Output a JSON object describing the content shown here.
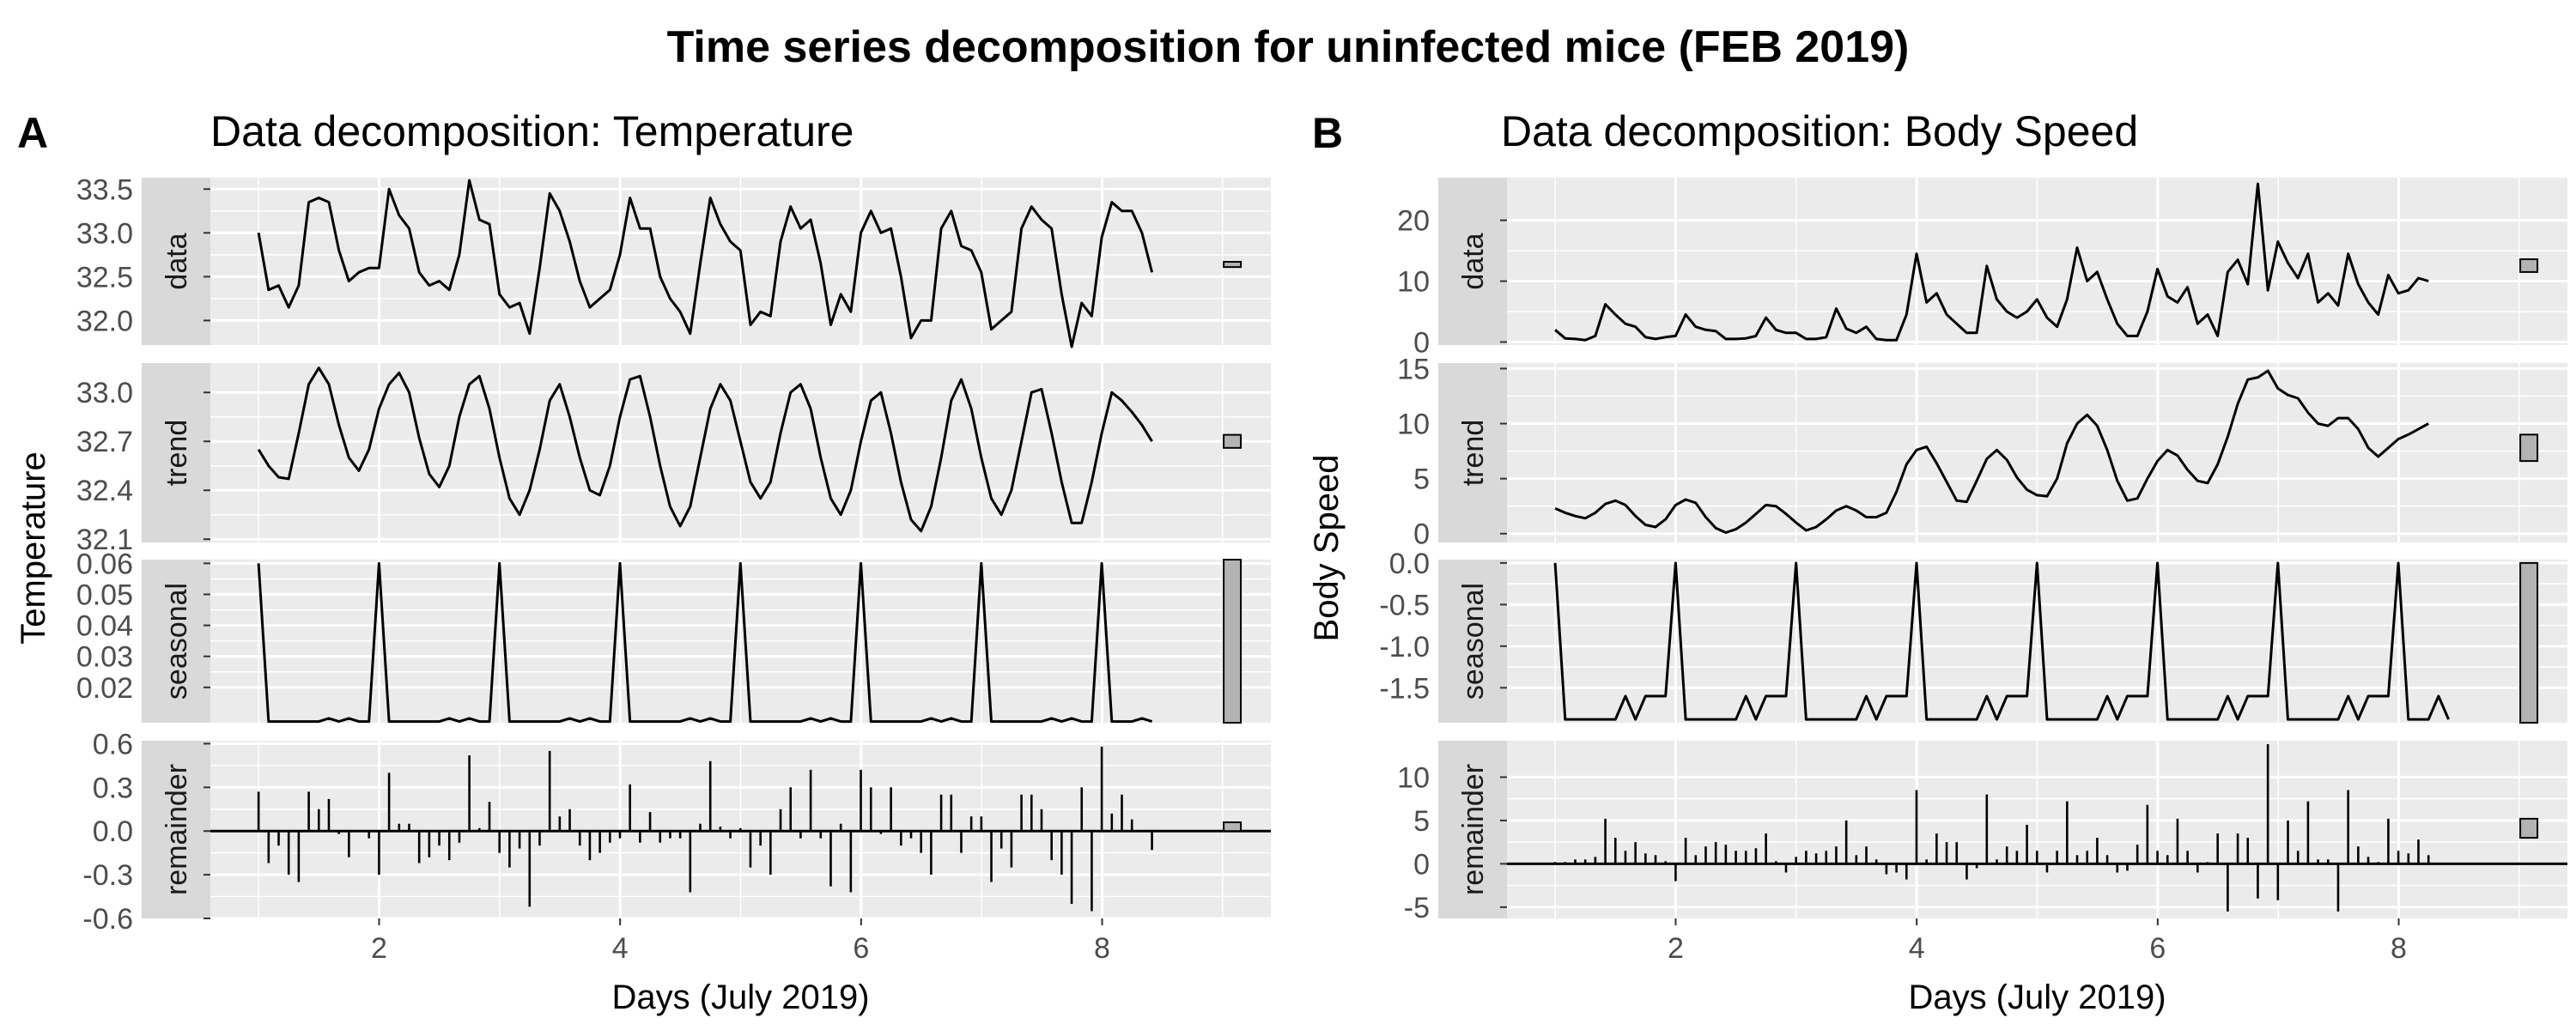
{
  "figure": {
    "title": "Time series decomposition for uninfected mice (FEB 2019)"
  },
  "chart_data": [
    {
      "type": "line",
      "panel_label": "A",
      "title": "Data decomposition: Temperature",
      "xlabel": "Days (July 2019)",
      "ylabel": "Temperature",
      "xlim": [
        0.6,
        9.4
      ],
      "x_ticks": [
        2,
        4,
        6,
        8
      ],
      "grid": true,
      "x_start": 1.0,
      "x_step": 0.0833,
      "facets": [
        {
          "name": "data",
          "ylim": [
            31.72,
            33.63
          ],
          "y_ticks": [
            32.0,
            32.5,
            33.0,
            33.5
          ],
          "y_tick_labels": [
            "32.0",
            "32.5",
            "33.0",
            "33.5"
          ],
          "range_bar": [
            32.61,
            32.67
          ],
          "values": [
            33.0,
            32.35,
            32.4,
            32.15,
            32.4,
            33.35,
            33.4,
            33.35,
            32.8,
            32.45,
            32.55,
            32.6,
            32.6,
            33.5,
            33.2,
            33.05,
            32.55,
            32.4,
            32.45,
            32.35,
            32.75,
            33.6,
            33.15,
            33.1,
            32.3,
            32.15,
            32.2,
            31.85,
            32.6,
            33.45,
            33.25,
            32.9,
            32.45,
            32.15,
            32.25,
            32.35,
            32.75,
            33.4,
            33.05,
            33.05,
            32.5,
            32.25,
            32.1,
            31.85,
            32.65,
            33.4,
            33.1,
            32.9,
            32.8,
            31.95,
            32.1,
            32.05,
            32.9,
            33.3,
            33.05,
            33.15,
            32.65,
            31.95,
            32.3,
            32.1,
            33.0,
            33.25,
            33.0,
            33.05,
            32.5,
            31.8,
            32.0,
            32.0,
            33.05,
            33.25,
            32.85,
            32.8,
            32.55,
            31.9,
            32.0,
            32.1,
            33.05,
            33.3,
            33.15,
            33.05,
            32.3,
            31.7,
            32.2,
            32.05,
            32.95,
            33.35,
            33.25,
            33.25,
            33.0,
            32.55
          ]
        },
        {
          "name": "trend",
          "ylim": [
            32.08,
            33.18
          ],
          "y_ticks": [
            32.1,
            32.4,
            32.7,
            33.0
          ],
          "y_tick_labels": [
            "32.1",
            "32.4",
            "32.7",
            "33.0"
          ],
          "range_bar": [
            32.66,
            32.74
          ],
          "values": [
            32.65,
            32.55,
            32.48,
            32.47,
            32.75,
            33.05,
            33.15,
            33.05,
            32.8,
            32.6,
            32.52,
            32.65,
            32.9,
            33.05,
            33.12,
            33.0,
            32.72,
            32.5,
            32.42,
            32.55,
            32.85,
            33.05,
            33.1,
            32.9,
            32.6,
            32.35,
            32.25,
            32.4,
            32.65,
            32.95,
            33.05,
            32.85,
            32.6,
            32.4,
            32.37,
            32.55,
            32.85,
            33.08,
            33.1,
            32.85,
            32.55,
            32.3,
            32.18,
            32.3,
            32.6,
            32.9,
            33.05,
            32.95,
            32.7,
            32.45,
            32.35,
            32.45,
            32.75,
            33.0,
            33.05,
            32.9,
            32.6,
            32.35,
            32.25,
            32.4,
            32.7,
            32.95,
            33.0,
            32.75,
            32.45,
            32.22,
            32.15,
            32.3,
            32.6,
            32.95,
            33.08,
            32.9,
            32.6,
            32.35,
            32.25,
            32.4,
            32.7,
            33.0,
            33.02,
            32.75,
            32.45,
            32.2,
            32.2,
            32.45,
            32.75,
            33.0,
            32.95,
            32.88,
            32.8,
            32.7
          ]
        },
        {
          "name": "seasonal",
          "ylim": [
            0.0086,
            0.0612
          ],
          "y_ticks": [
            0.02,
            0.03,
            0.04,
            0.05,
            0.06
          ],
          "y_tick_labels": [
            "0.02",
            "0.03",
            "0.04",
            "0.05",
            "0.06"
          ],
          "range_bar": [
            0.0086,
            0.0612
          ],
          "values": [
            0.06,
            0.009,
            0.009,
            0.009,
            0.009,
            0.009,
            0.009,
            0.01,
            0.009,
            0.01,
            0.009,
            0.009,
            0.06,
            0.009,
            0.009,
            0.009,
            0.009,
            0.009,
            0.009,
            0.01,
            0.009,
            0.01,
            0.009,
            0.009,
            0.06,
            0.009,
            0.009,
            0.009,
            0.009,
            0.009,
            0.009,
            0.01,
            0.009,
            0.01,
            0.009,
            0.009,
            0.06,
            0.009,
            0.009,
            0.009,
            0.009,
            0.009,
            0.009,
            0.01,
            0.009,
            0.01,
            0.009,
            0.009,
            0.06,
            0.009,
            0.009,
            0.009,
            0.009,
            0.009,
            0.009,
            0.01,
            0.009,
            0.01,
            0.009,
            0.009,
            0.06,
            0.009,
            0.009,
            0.009,
            0.009,
            0.009,
            0.009,
            0.01,
            0.009,
            0.01,
            0.009,
            0.009,
            0.06,
            0.009,
            0.009,
            0.009,
            0.009,
            0.009,
            0.009,
            0.01,
            0.009,
            0.01,
            0.009,
            0.009,
            0.06,
            0.009,
            0.009,
            0.009,
            0.01,
            0.009
          ]
        },
        {
          "name": "remainder",
          "ylim": [
            -0.6,
            0.62
          ],
          "y_ticks": [
            -0.6,
            -0.3,
            0.0,
            0.3,
            0.6
          ],
          "y_tick_labels": [
            "-0.6",
            "-0.3",
            "0.0",
            "0.3",
            "0.6"
          ],
          "range_bar": [
            0.0,
            0.06
          ],
          "style": "bars",
          "values": [
            0.27,
            -0.22,
            -0.1,
            -0.3,
            -0.35,
            0.27,
            0.15,
            0.22,
            -0.02,
            -0.18,
            0.0,
            -0.05,
            -0.3,
            0.4,
            0.05,
            0.05,
            -0.22,
            -0.18,
            -0.1,
            -0.2,
            -0.08,
            0.52,
            0.02,
            0.2,
            -0.15,
            -0.25,
            -0.12,
            -0.52,
            -0.1,
            0.55,
            0.1,
            0.15,
            -0.1,
            -0.2,
            -0.15,
            -0.08,
            -0.05,
            0.32,
            -0.08,
            0.13,
            -0.08,
            -0.05,
            -0.05,
            -0.42,
            0.05,
            0.48,
            0.03,
            -0.05,
            0.02,
            -0.25,
            -0.1,
            -0.3,
            0.15,
            0.3,
            -0.05,
            0.42,
            -0.05,
            -0.38,
            0.05,
            -0.42,
            0.42,
            0.3,
            -0.02,
            0.3,
            -0.1,
            -0.05,
            -0.15,
            -0.3,
            0.25,
            0.25,
            -0.15,
            0.1,
            0.1,
            -0.35,
            -0.12,
            -0.25,
            0.25,
            0.25,
            0.15,
            -0.2,
            -0.3,
            -0.5,
            0.3,
            -0.55,
            0.58,
            0.12,
            0.25,
            0.08,
            0.0,
            -0.13
          ]
        }
      ]
    },
    {
      "type": "line",
      "panel_label": "B",
      "title": "Data decomposition: Body Speed",
      "xlabel": "Days (July 2019)",
      "ylabel": "Body Speed",
      "xlim": [
        0.6,
        9.4
      ],
      "x_ticks": [
        2,
        4,
        6,
        8
      ],
      "grid": true,
      "x_start": 1.0,
      "x_step": 0.0833,
      "facets": [
        {
          "name": "data",
          "ylim": [
            -0.5,
            27
          ],
          "y_ticks": [
            0,
            10,
            20
          ],
          "y_tick_labels": [
            "0",
            "10",
            "20"
          ],
          "range_bar": [
            11.5,
            13.6
          ],
          "values": [
            2.0,
            0.6,
            0.5,
            0.3,
            1.0,
            6.2,
            4.5,
            3.0,
            2.5,
            0.8,
            0.5,
            0.8,
            1.0,
            4.5,
            2.5,
            2.0,
            1.8,
            0.5,
            0.5,
            0.6,
            1.0,
            4.0,
            2.0,
            1.5,
            1.5,
            0.5,
            0.5,
            0.8,
            5.5,
            2.2,
            1.5,
            2.5,
            0.5,
            0.3,
            0.3,
            4.5,
            14.5,
            6.5,
            8.0,
            4.5,
            3.0,
            1.5,
            1.5,
            12.5,
            7.0,
            5.0,
            4.0,
            5.0,
            7.0,
            4.0,
            2.5,
            7.0,
            15.5,
            10.0,
            11.5,
            7.0,
            3.0,
            1.0,
            1.0,
            5.0,
            12.0,
            7.5,
            6.5,
            9.0,
            3.0,
            4.5,
            1.0,
            11.5,
            13.5,
            9.5,
            26.0,
            8.5,
            16.5,
            13.0,
            10.5,
            14.5,
            6.5,
            8.0,
            6.0,
            14.5,
            9.5,
            6.5,
            4.5,
            11.0,
            8.0,
            8.5,
            10.5,
            10.0
          ]
        },
        {
          "name": "trend",
          "ylim": [
            -0.8,
            15.5
          ],
          "y_ticks": [
            0,
            5,
            10,
            15
          ],
          "y_tick_labels": [
            "0",
            "5",
            "10",
            "15"
          ],
          "range_bar": [
            6.6,
            9.0
          ],
          "values": [
            2.3,
            1.9,
            1.6,
            1.4,
            1.9,
            2.7,
            3.0,
            2.6,
            1.6,
            0.8,
            0.6,
            1.3,
            2.6,
            3.1,
            2.8,
            1.5,
            0.5,
            0.1,
            0.4,
            1.0,
            1.8,
            2.6,
            2.5,
            1.8,
            1.0,
            0.3,
            0.6,
            1.3,
            2.1,
            2.5,
            2.1,
            1.5,
            1.5,
            1.9,
            3.8,
            6.3,
            7.6,
            7.9,
            6.4,
            4.7,
            3.0,
            2.9,
            4.8,
            6.8,
            7.6,
            6.7,
            5.1,
            4.0,
            3.5,
            3.4,
            5.0,
            8.2,
            10.0,
            10.8,
            9.8,
            7.6,
            4.8,
            3.0,
            3.2,
            5.0,
            6.6,
            7.6,
            7.1,
            5.8,
            4.8,
            4.6,
            6.3,
            8.8,
            11.8,
            14.0,
            14.2,
            14.8,
            13.2,
            12.6,
            12.3,
            11.0,
            10.0,
            9.8,
            10.5,
            10.5,
            9.5,
            7.8,
            7.0,
            7.8,
            8.6,
            9.0,
            9.5,
            10.0
          ]
        },
        {
          "name": "seasonal",
          "ylim": [
            -1.92,
            0.04
          ],
          "y_ticks": [
            -1.5,
            -1.0,
            -0.5,
            0.0
          ],
          "y_tick_labels": [
            "-1.5",
            "-1.0",
            "-0.5",
            "0.0"
          ],
          "range_bar": [
            -1.92,
            0.0
          ],
          "values": [
            0.0,
            -1.88,
            -1.88,
            -1.88,
            -1.88,
            -1.88,
            -1.88,
            -1.6,
            -1.88,
            -1.6,
            -1.6,
            -1.6,
            0.0,
            -1.88,
            -1.88,
            -1.88,
            -1.88,
            -1.88,
            -1.88,
            -1.6,
            -1.88,
            -1.6,
            -1.6,
            -1.6,
            0.0,
            -1.88,
            -1.88,
            -1.88,
            -1.88,
            -1.88,
            -1.88,
            -1.6,
            -1.88,
            -1.6,
            -1.6,
            -1.6,
            0.0,
            -1.88,
            -1.88,
            -1.88,
            -1.88,
            -1.88,
            -1.88,
            -1.6,
            -1.88,
            -1.6,
            -1.6,
            -1.6,
            0.0,
            -1.88,
            -1.88,
            -1.88,
            -1.88,
            -1.88,
            -1.88,
            -1.6,
            -1.88,
            -1.6,
            -1.6,
            -1.6,
            0.0,
            -1.88,
            -1.88,
            -1.88,
            -1.88,
            -1.88,
            -1.88,
            -1.6,
            -1.88,
            -1.6,
            -1.6,
            -1.6,
            0.0,
            -1.88,
            -1.88,
            -1.88,
            -1.88,
            -1.88,
            -1.88,
            -1.6,
            -1.88,
            -1.6,
            -1.6,
            -1.6,
            0.0,
            -1.88,
            -1.88,
            -1.88,
            -1.6,
            -1.88
          ]
        },
        {
          "name": "remainder",
          "ylim": [
            -6.3,
            14.2
          ],
          "y_ticks": [
            -5,
            0,
            5,
            10
          ],
          "y_tick_labels": [
            "-5",
            "0",
            "5",
            "10"
          ],
          "range_bar": [
            3.0,
            5.2
          ],
          "style": "bars",
          "values": [
            0.2,
            0.2,
            0.5,
            0.5,
            0.8,
            5.2,
            3.0,
            1.5,
            2.5,
            1.2,
            1.0,
            0.3,
            -2.0,
            3.0,
            1.0,
            2.0,
            2.5,
            2.2,
            1.5,
            1.5,
            1.8,
            3.5,
            0.3,
            -1.0,
            0.8,
            1.5,
            1.2,
            1.5,
            2.0,
            5.0,
            1.0,
            2.0,
            0.5,
            -1.2,
            -1.0,
            -1.8,
            8.5,
            0.5,
            3.5,
            2.5,
            2.5,
            -1.8,
            -0.5,
            8.0,
            0.5,
            2.0,
            1.5,
            4.5,
            1.5,
            -1.0,
            1.5,
            7.2,
            1.0,
            1.5,
            3.0,
            1.0,
            -1.0,
            -0.8,
            2.2,
            6.8,
            1.5,
            1.0,
            5.2,
            1.5,
            -1.0,
            0.2,
            3.5,
            -5.5,
            3.5,
            3.0,
            -4.0,
            13.8,
            -4.2,
            5.0,
            1.5,
            7.2,
            0.5,
            0.5,
            -5.5,
            8.5,
            2.0,
            0.8,
            0.2,
            5.2,
            1.5,
            1.2,
            2.8,
            1.0
          ]
        }
      ]
    }
  ]
}
